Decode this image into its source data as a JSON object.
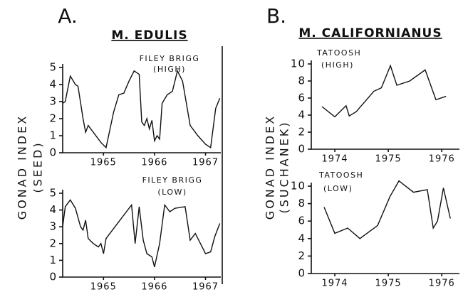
{
  "panels": [
    {
      "label": "A.",
      "heading": "M. EDULIS",
      "ylabel": [
        "GONAD INDEX",
        "(SEED)"
      ]
    },
    {
      "label": "B.",
      "heading": "M. CALIFORNIANUS",
      "ylabel": [
        "GONAD INDEX",
        "(SUCHANEK)"
      ]
    }
  ],
  "chart_data": [
    {
      "type": "line",
      "title": [
        "FILEY BRIGG",
        "(HIGH)"
      ],
      "x": [
        1964.7,
        1964.75,
        1964.85,
        1964.95,
        1965.0,
        1965.1,
        1965.15,
        1965.2,
        1965.3,
        1965.45,
        1965.55,
        1965.7,
        1965.8,
        1965.9,
        1966.0,
        1966.1,
        1966.2,
        1966.25,
        1966.3,
        1966.35,
        1966.4,
        1966.45,
        1966.5,
        1966.55,
        1966.6,
        1966.65,
        1966.75,
        1966.85,
        1966.95,
        1967.05,
        1967.2,
        1967.35,
        1967.5,
        1967.6,
        1967.7,
        1967.78
      ],
      "values": [
        2.9,
        3.0,
        4.5,
        4.0,
        3.9,
        2.0,
        1.2,
        1.6,
        1.2,
        0.6,
        0.3,
        2.4,
        3.4,
        3.5,
        4.2,
        4.8,
        4.6,
        1.8,
        1.6,
        2.0,
        1.4,
        1.9,
        0.7,
        1.0,
        0.8,
        2.9,
        3.4,
        3.6,
        4.8,
        4.2,
        1.6,
        1.0,
        0.5,
        0.3,
        2.6,
        3.2
      ],
      "color": "#111111",
      "xlim": [
        1964.7,
        1967.8
      ],
      "ylim": [
        0,
        5
      ],
      "yticks": [
        0,
        1,
        2,
        3,
        4,
        5
      ],
      "xticks": [
        {
          "value": 1965.5,
          "label": "1965"
        },
        {
          "value": 1966.5,
          "label": "1966"
        },
        {
          "value": 1967.5,
          "label": "1967"
        }
      ]
    },
    {
      "type": "line",
      "title": [
        "FILEY BRIGG",
        "(LOW)"
      ],
      "x": [
        1964.7,
        1964.75,
        1964.85,
        1964.95,
        1965.05,
        1965.1,
        1965.15,
        1965.2,
        1965.3,
        1965.4,
        1965.45,
        1965.5,
        1965.55,
        1965.7,
        1966.05,
        1966.12,
        1966.2,
        1966.28,
        1966.35,
        1966.45,
        1966.5,
        1966.6,
        1966.7,
        1966.8,
        1966.9,
        1967.1,
        1967.2,
        1967.3,
        1967.4,
        1967.5,
        1967.6,
        1967.68,
        1967.78
      ],
      "values": [
        3.0,
        4.2,
        4.6,
        4.1,
        3.0,
        2.8,
        3.4,
        2.3,
        2.0,
        1.8,
        2.0,
        1.4,
        2.3,
        2.9,
        4.3,
        2.0,
        4.2,
        2.2,
        1.4,
        1.2,
        0.6,
        2.0,
        4.3,
        3.9,
        4.1,
        4.2,
        2.2,
        2.6,
        2.0,
        1.4,
        1.5,
        2.4,
        3.2
      ],
      "color": "#111111",
      "xlim": [
        1964.7,
        1967.8
      ],
      "ylim": [
        0,
        5
      ],
      "yticks": [
        0,
        1,
        2,
        3,
        4,
        5
      ],
      "xticks": [
        {
          "value": 1965.5,
          "label": "1965"
        },
        {
          "value": 1966.5,
          "label": "1966"
        },
        {
          "value": 1967.5,
          "label": "1967"
        }
      ]
    },
    {
      "type": "line",
      "title": [
        "TATOOSH",
        "(HIGH)"
      ],
      "x": [
        1974.26,
        1974.5,
        1974.71,
        1974.77,
        1974.9,
        1975.23,
        1975.37,
        1975.54,
        1975.66,
        1975.9,
        1976.19,
        1976.39,
        1976.58
      ],
      "values": [
        5.0,
        3.8,
        5.1,
        3.9,
        4.4,
        6.8,
        7.2,
        9.8,
        7.5,
        8.0,
        9.3,
        5.8,
        6.2
      ],
      "color": "#111111",
      "xlim": [
        1974.06,
        1976.83
      ],
      "ylim": [
        0,
        10
      ],
      "yticks": [
        0,
        2,
        4,
        6,
        8,
        10
      ],
      "xticks": [
        {
          "value": 1974.5,
          "label": "1974"
        },
        {
          "value": 1975.5,
          "label": "1975"
        },
        {
          "value": 1976.5,
          "label": "1976"
        }
      ]
    },
    {
      "type": "line",
      "title": [
        "TATOOSH",
        "(LOW)"
      ],
      "x": [
        1974.3,
        1974.5,
        1974.74,
        1974.97,
        1975.3,
        1975.53,
        1975.7,
        1975.97,
        1976.23,
        1976.34,
        1976.42,
        1976.53,
        1976.66
      ],
      "values": [
        7.6,
        4.6,
        5.2,
        4.0,
        5.5,
        8.8,
        10.6,
        9.3,
        9.6,
        5.2,
        6.0,
        9.8,
        6.3
      ],
      "color": "#111111",
      "xlim": [
        1974.06,
        1976.83
      ],
      "ylim": [
        0,
        10
      ],
      "yticks": [
        0,
        2,
        4,
        6,
        8,
        10
      ],
      "xticks": [
        {
          "value": 1974.5,
          "label": "1974"
        },
        {
          "value": 1975.5,
          "label": "1975"
        },
        {
          "value": 1976.5,
          "label": "1976"
        }
      ]
    }
  ]
}
